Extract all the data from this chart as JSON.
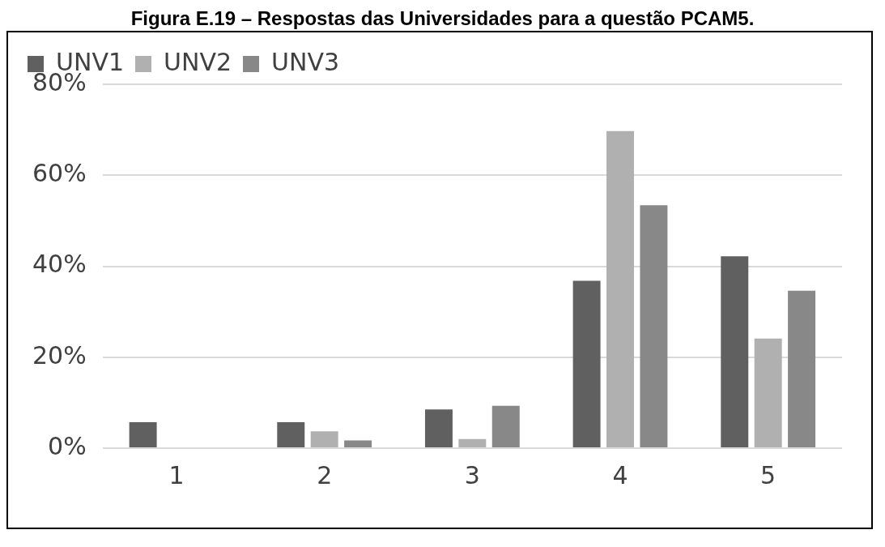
{
  "chart_data": {
    "type": "bar",
    "title": "Figura E.19 – Respostas das Universidades para a questão PCAM5.",
    "categories": [
      "1",
      "2",
      "3",
      "4",
      "5"
    ],
    "series": [
      {
        "name": "UNV1",
        "color": "#606060",
        "values": [
          5.7,
          5.7,
          8.5,
          36.8,
          42.2
        ]
      },
      {
        "name": "UNV2",
        "color": "#b0b0b0",
        "values": [
          0,
          3.7,
          2,
          69.7,
          24.1
        ]
      },
      {
        "name": "UNV3",
        "color": "#888888",
        "values": [
          0,
          1.7,
          9.3,
          53.4,
          34.6
        ]
      }
    ],
    "ylim": [
      0,
      80
    ],
    "yticks": [
      {
        "value": 0,
        "label": "0%"
      },
      {
        "value": 20,
        "label": "20%"
      },
      {
        "value": 40,
        "label": "40%"
      },
      {
        "value": 60,
        "label": "60%"
      },
      {
        "value": 80,
        "label": "80%"
      }
    ],
    "grid": "y",
    "legend": "top left"
  }
}
